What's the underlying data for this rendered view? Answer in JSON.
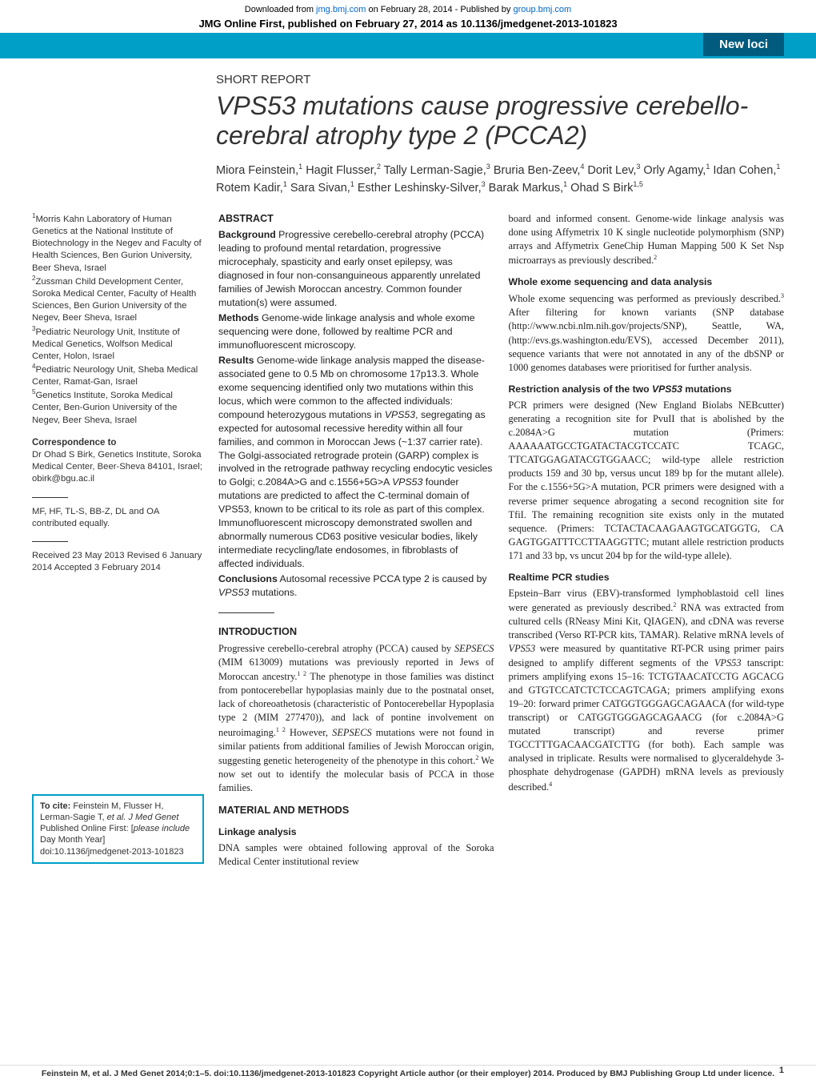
{
  "meta": {
    "downloaded_prefix": "Downloaded from ",
    "downloaded_site": "jmg.bmj.com",
    "downloaded_mid": " on February 28, 2014 - Published by ",
    "downloaded_pub": "group.bmj.com",
    "pub_banner": "JMG Online First, published on February 27, 2014 as 10.1136/jmedgenet-2013-101823",
    "section_tab": "New loci"
  },
  "header": {
    "report_type": "SHORT REPORT",
    "title_html": "<i>VPS53</i> mutations cause progressive cerebello-cerebral atrophy type 2 (PCCA2)",
    "authors_html": "Miora Feinstein,<sup>1</sup> Hagit Flusser,<sup>2</sup> Tally Lerman-Sagie,<sup>3</sup> Bruria Ben-Zeev,<sup>4</sup> Dorit Lev,<sup>3</sup> Orly Agamy,<sup>1</sup> Idan Cohen,<sup>1</sup> Rotem Kadir,<sup>1</sup> Sara Sivan,<sup>1</sup> Esther Leshinsky-Silver,<sup>3</sup> Barak Markus,<sup>1</sup> Ohad S Birk<sup>1,5</sup>"
  },
  "sidebar": {
    "affiliations_html": "<sup>1</sup>Morris Kahn Laboratory of Human Genetics at the National Institute of Biotechnology in the Negev and Faculty of Health Sciences, Ben Gurion University, Beer Sheva, Israel<br><sup>2</sup>Zussman Child Development Center, Soroka Medical Center, Faculty of Health Sciences, Ben Gurion University of the Negev, Beer Sheva, Israel<br><sup>3</sup>Pediatric Neurology Unit, Institute of Medical Genetics, Wolfson Medical Center, Holon, Israel<br><sup>4</sup>Pediatric Neurology Unit, Sheba Medical Center, Ramat-Gan, Israel<br><sup>5</sup>Genetics Institute, Soroka Medical Center, Ben-Gurion University of the Negev, Beer Sheva, Israel",
    "corr_head": "Correspondence to",
    "corr_body": "Dr Ohad S Birk,\nGenetics Institute, Soroka Medical Center, Beer-Sheva 84101, Israel;\nobirk@bgu.ac.il",
    "contrib": "MF, HF, TL-S, BB-Z, DL and OA contributed equally.",
    "dates": "Received 23 May 2013\nRevised 6 January 2014\nAccepted 3 February 2014",
    "cite_html": "<b>To cite:</b> Feinstein M, Flusser H, Lerman-Sagie T, <i>et al. J Med Genet</i> Published Online First: [<i>please include</i> Day Month Year] doi:10.1136/jmedgenet-2013-101823"
  },
  "abstract": {
    "head": "ABSTRACT",
    "background_label": "Background",
    "background": " Progressive cerebello-cerebral atrophy (PCCA) leading to profound mental retardation, progressive microcephaly, spasticity and early onset epilepsy, was diagnosed in four non-consanguineous apparently unrelated families of Jewish Moroccan ancestry. Common founder mutation(s) were assumed.",
    "methods_label": "Methods",
    "methods": " Genome-wide linkage analysis and whole exome sequencing were done, followed by realtime PCR and immunofluorescent microscopy.",
    "results_label": "Results",
    "results_html": " Genome-wide linkage analysis mapped the disease-associated gene to 0.5 Mb on chromosome 17p13.3. Whole exome sequencing identified only two mutations within this locus, which were common to the affected individuals: compound heterozygous mutations in <i>VPS53</i>, segregating as expected for autosomal recessive heredity within all four families, and common in Moroccan Jews (~1:37 carrier rate). The Golgi-associated retrograde protein (GARP) complex is involved in the retrograde pathway recycling endocytic vesicles to Golgi; c.2084A>G and c.1556+5G>A <i>VPS53</i> founder mutations are predicted to affect the C-terminal domain of VPS53, known to be critical to its role as part of this complex. Immunofluorescent microscopy demonstrated swollen and abnormally numerous CD63 positive vesicular bodies, likely intermediate recycling/late endosomes, in fibroblasts of affected individuals.",
    "conclusions_label": "Conclusions",
    "conclusions_html": " Autosomal recessive PCCA type 2 is caused by <i>VPS53</i> mutations."
  },
  "intro": {
    "head": "INTRODUCTION",
    "body_html": "Progressive cerebello-cerebral atrophy (PCCA) caused by <i>SEPSECS</i> (MIM 613009) mutations was previously reported in Jews of Moroccan ancestry.<sup>1 2</sup> The phenotype in those families was distinct from pontocerebellar hypoplasias mainly due to the postnatal onset, lack of choreoathetosis (characteristic of Pontocerebellar Hypoplasia type 2 (MIM 277470)), and lack of pontine involvement on neuroimaging.<sup>1 2</sup> However, <i>SEPSECS</i> mutations were not found in similar patients from additional families of Jewish Moroccan origin, suggesting genetic heterogeneity of the phenotype in this cohort.<sup>2</sup> We now set out to identify the molecular basis of PCCA in those families."
  },
  "methods": {
    "head": "MATERIAL AND METHODS",
    "linkage_head": "Linkage analysis",
    "linkage_body_html": "DNA samples were obtained following approval of the Soroka Medical Center institutional review",
    "linkage_cont_html": "board and informed consent. Genome-wide linkage analysis was done using Affymetrix 10 K single nucleotide polymorphism (SNP) arrays and Affymetrix GeneChip Human Mapping 500 K Set Nsp microarrays as previously described.<sup>2</sup>",
    "exome_head": "Whole exome sequencing and data analysis",
    "exome_body_html": "Whole exome sequencing was performed as previously described.<sup>3</sup> After filtering for known variants (SNP database (http://www.ncbi.nlm.nih.gov/projects/SNP), Seattle, WA, (http://evs.gs.washington.edu/EVS), accessed December 2011), sequence variants that were not annotated in any of the dbSNP or 1000 genomes databases were prioritised for further analysis.",
    "restr_head_html": "Restriction analysis of the two <i>VPS53</i> mutations",
    "restr_body_html": "PCR primers were designed (New England Biolabs NEBcutter) generating a recognition site for PvuII that is abolished by the c.2084A>G mutation (Primers: AAAAAATGCCTGATACTACGTCCATC TCAGC, TTCATGGAGATACGTGGAACC; wild-type allele restriction products 159 and 30 bp, versus uncut 189 bp for the mutant allele). For the c.1556+5G>A mutation, PCR primers were designed with a reverse primer sequence abrogating a second recognition site for TfiI. The remaining recognition site exists only in the mutated sequence. (Primers: TCTACTACAAGAAGTGCATGGTG, CA GAGTGGATTTCCTTAAGGTTC; mutant allele restriction products 171 and 33 bp, vs uncut 204 bp for the wild-type allele).",
    "rt_head": "Realtime PCR studies",
    "rt_body_html": "Epstein–Barr virus (EBV)-transformed lymphoblastoid cell lines were generated as previously described.<sup>2</sup> RNA was extracted from cultured cells (RNeasy Mini Kit, QIAGEN), and cDNA was reverse transcribed (Verso RT-PCR kits, TAMAR). Relative mRNA levels of <i>VPS53</i> were measured by quantitative RT-PCR using primer pairs designed to amplify different segments of the <i>VPS53</i> tanscript: primers amplifying exons 15–16: TCTGTAACATCCTG AGCACG and GTGTCCATCTCTCCAGTCAGA; primers amplifying exons 19–20: forward primer CATGGTGGGAGCAGAACA (for wild-type transcript) or CATGGTGGGAGCAGAACG (for c.2084A>G mutated transcript) and reverse primer TGCCTTTGACAACGATCTTG (for both). Each sample was analysed in triplicate. Results were normalised to glyceraldehyde 3-phosphate dehydrogenase (GAPDH) mRNA levels as previously described.<sup>4</sup>"
  },
  "footer": {
    "text": "Feinstein M, et al. J Med Genet 2014;0:1–5. doi:10.1136/jmedgenet-2013-101823 Copyright Article author (or their employer) 2014. Produced by BMJ Publishing Group Ltd under licence.",
    "page": "1"
  },
  "style": {
    "accent_blue": "#009fc7",
    "dark_blue": "#005b7f",
    "link_color": "#0066cc",
    "title_fontsize": 32,
    "body_fontsize": 12.3,
    "sidebar_fontsize": 11.3
  }
}
